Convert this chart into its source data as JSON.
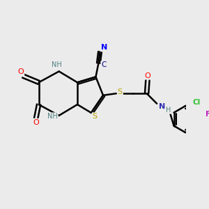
{
  "bg_color": "#ebebeb",
  "bond_color": "#000000",
  "bond_lw": 1.8,
  "atom_colors": {
    "N": "#3030b0",
    "O": "#ff0000",
    "S": "#b8a000",
    "CN_C": "#000080",
    "CN_N": "#0000ff",
    "Cl": "#30c030",
    "F": "#c020c0",
    "NH": "#508080"
  },
  "figsize": [
    3.0,
    3.0
  ],
  "dpi": 100
}
